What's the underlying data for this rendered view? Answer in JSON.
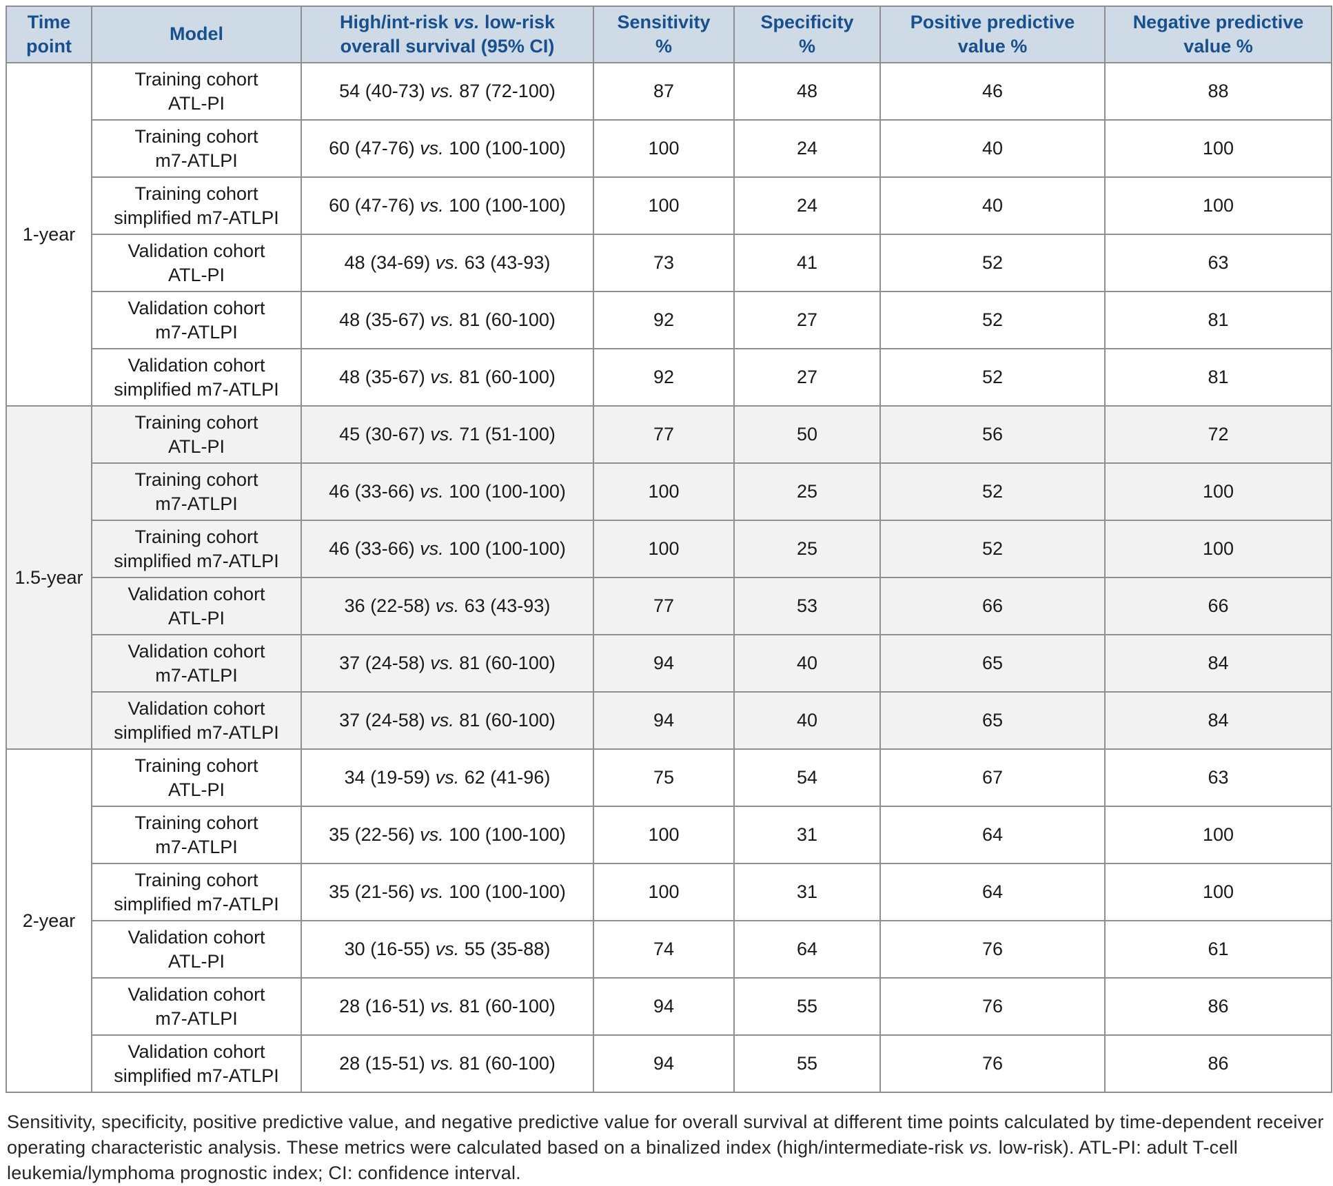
{
  "table": {
    "columns": [
      {
        "key": "time-point",
        "label": "Time\npoint"
      },
      {
        "key": "model",
        "label": "Model"
      },
      {
        "key": "survival",
        "label": "High/int-risk vs. low-risk\noverall survival (95% CI)"
      },
      {
        "key": "sensitivity",
        "label": "Sensitivity\n%"
      },
      {
        "key": "specificity",
        "label": "Specificity\n%"
      },
      {
        "key": "ppv",
        "label": "Positive predictive\nvalue %"
      },
      {
        "key": "npv",
        "label": "Negative predictive\nvalue %"
      }
    ],
    "groups": [
      {
        "time_point": "1-year",
        "rows": [
          {
            "model": "Training cohort\nATL-PI",
            "survival": "54 (40-73) vs. 87 (72-100)",
            "sensitivity": "87",
            "specificity": "48",
            "ppv": "46",
            "npv": "88"
          },
          {
            "model": "Training cohort\nm7-ATLPI",
            "survival": "60 (47-76) vs. 100 (100-100)",
            "sensitivity": "100",
            "specificity": "24",
            "ppv": "40",
            "npv": "100"
          },
          {
            "model": "Training cohort\nsimplified m7-ATLPI",
            "survival": "60 (47-76) vs. 100 (100-100)",
            "sensitivity": "100",
            "specificity": "24",
            "ppv": "40",
            "npv": "100"
          },
          {
            "model": "Validation cohort\nATL-PI",
            "survival": "48 (34-69) vs. 63 (43-93)",
            "sensitivity": "73",
            "specificity": "41",
            "ppv": "52",
            "npv": "63"
          },
          {
            "model": "Validation cohort\nm7-ATLPI",
            "survival": "48 (35-67) vs. 81 (60-100)",
            "sensitivity": "92",
            "specificity": "27",
            "ppv": "52",
            "npv": "81"
          },
          {
            "model": "Validation cohort\nsimplified m7-ATLPI",
            "survival": "48 (35-67) vs. 81 (60-100)",
            "sensitivity": "92",
            "specificity": "27",
            "ppv": "52",
            "npv": "81"
          }
        ]
      },
      {
        "time_point": "1.5-year",
        "rows": [
          {
            "model": "Training cohort\nATL-PI",
            "survival": "45 (30-67) vs. 71 (51-100)",
            "sensitivity": "77",
            "specificity": "50",
            "ppv": "56",
            "npv": "72"
          },
          {
            "model": "Training cohort\nm7-ATLPI",
            "survival": "46 (33-66) vs. 100 (100-100)",
            "sensitivity": "100",
            "specificity": "25",
            "ppv": "52",
            "npv": "100"
          },
          {
            "model": "Training cohort\nsimplified m7-ATLPI",
            "survival": "46 (33-66) vs. 100 (100-100)",
            "sensitivity": "100",
            "specificity": "25",
            "ppv": "52",
            "npv": "100"
          },
          {
            "model": "Validation cohort\nATL-PI",
            "survival": "36 (22-58) vs. 63 (43-93)",
            "sensitivity": "77",
            "specificity": "53",
            "ppv": "66",
            "npv": "66"
          },
          {
            "model": "Validation cohort\nm7-ATLPI",
            "survival": "37 (24-58) vs. 81 (60-100)",
            "sensitivity": "94",
            "specificity": "40",
            "ppv": "65",
            "npv": "84"
          },
          {
            "model": "Validation cohort\nsimplified m7-ATLPI",
            "survival": "37 (24-58) vs. 81 (60-100)",
            "sensitivity": "94",
            "specificity": "40",
            "ppv": "65",
            "npv": "84"
          }
        ]
      },
      {
        "time_point": "2-year",
        "rows": [
          {
            "model": "Training cohort\nATL-PI",
            "survival": "34 (19-59) vs. 62 (41-96)",
            "sensitivity": "75",
            "specificity": "54",
            "ppv": "67",
            "npv": "63"
          },
          {
            "model": "Training cohort\nm7-ATLPI",
            "survival": "35 (22-56) vs. 100 (100-100)",
            "sensitivity": "100",
            "specificity": "31",
            "ppv": "64",
            "npv": "100"
          },
          {
            "model": "Training cohort\nsimplified m7-ATLPI",
            "survival": "35 (21-56) vs. 100 (100-100)",
            "sensitivity": "100",
            "specificity": "31",
            "ppv": "64",
            "npv": "100"
          },
          {
            "model": "Validation cohort\nATL-PI",
            "survival": "30 (16-55) vs. 55 (35-88)",
            "sensitivity": "74",
            "specificity": "64",
            "ppv": "76",
            "npv": "61"
          },
          {
            "model": "Validation cohort\nm7-ATLPI",
            "survival": "28 (16-51) vs. 81 (60-100)",
            "sensitivity": "94",
            "specificity": "55",
            "ppv": "76",
            "npv": "86"
          },
          {
            "model": "Validation cohort\nsimplified m7-ATLPI",
            "survival": "28 (15-51) vs. 81 (60-100)",
            "sensitivity": "94",
            "specificity": "55",
            "ppv": "76",
            "npv": "86"
          }
        ]
      }
    ]
  },
  "caption": "Sensitivity, specificity, positive predictive value, and negative predictive value for overall survival at different time points calculated by time-dependent receiver operating characteristic analysis. These metrics were calculated based on a binalized index (high/intermediate-risk vs. low-risk). ATL-PI: adult T-cell leukemia/lymphoma prognostic index; CI: confidence interval.",
  "colors": {
    "header_bg": "#cedbe6",
    "header_text": "#17508c",
    "grid_line": "#8f8f8f",
    "outer_border": "#6f6f6f",
    "alt_band_bg": "#f2f2f2",
    "body_text": "#1a1a1a"
  }
}
